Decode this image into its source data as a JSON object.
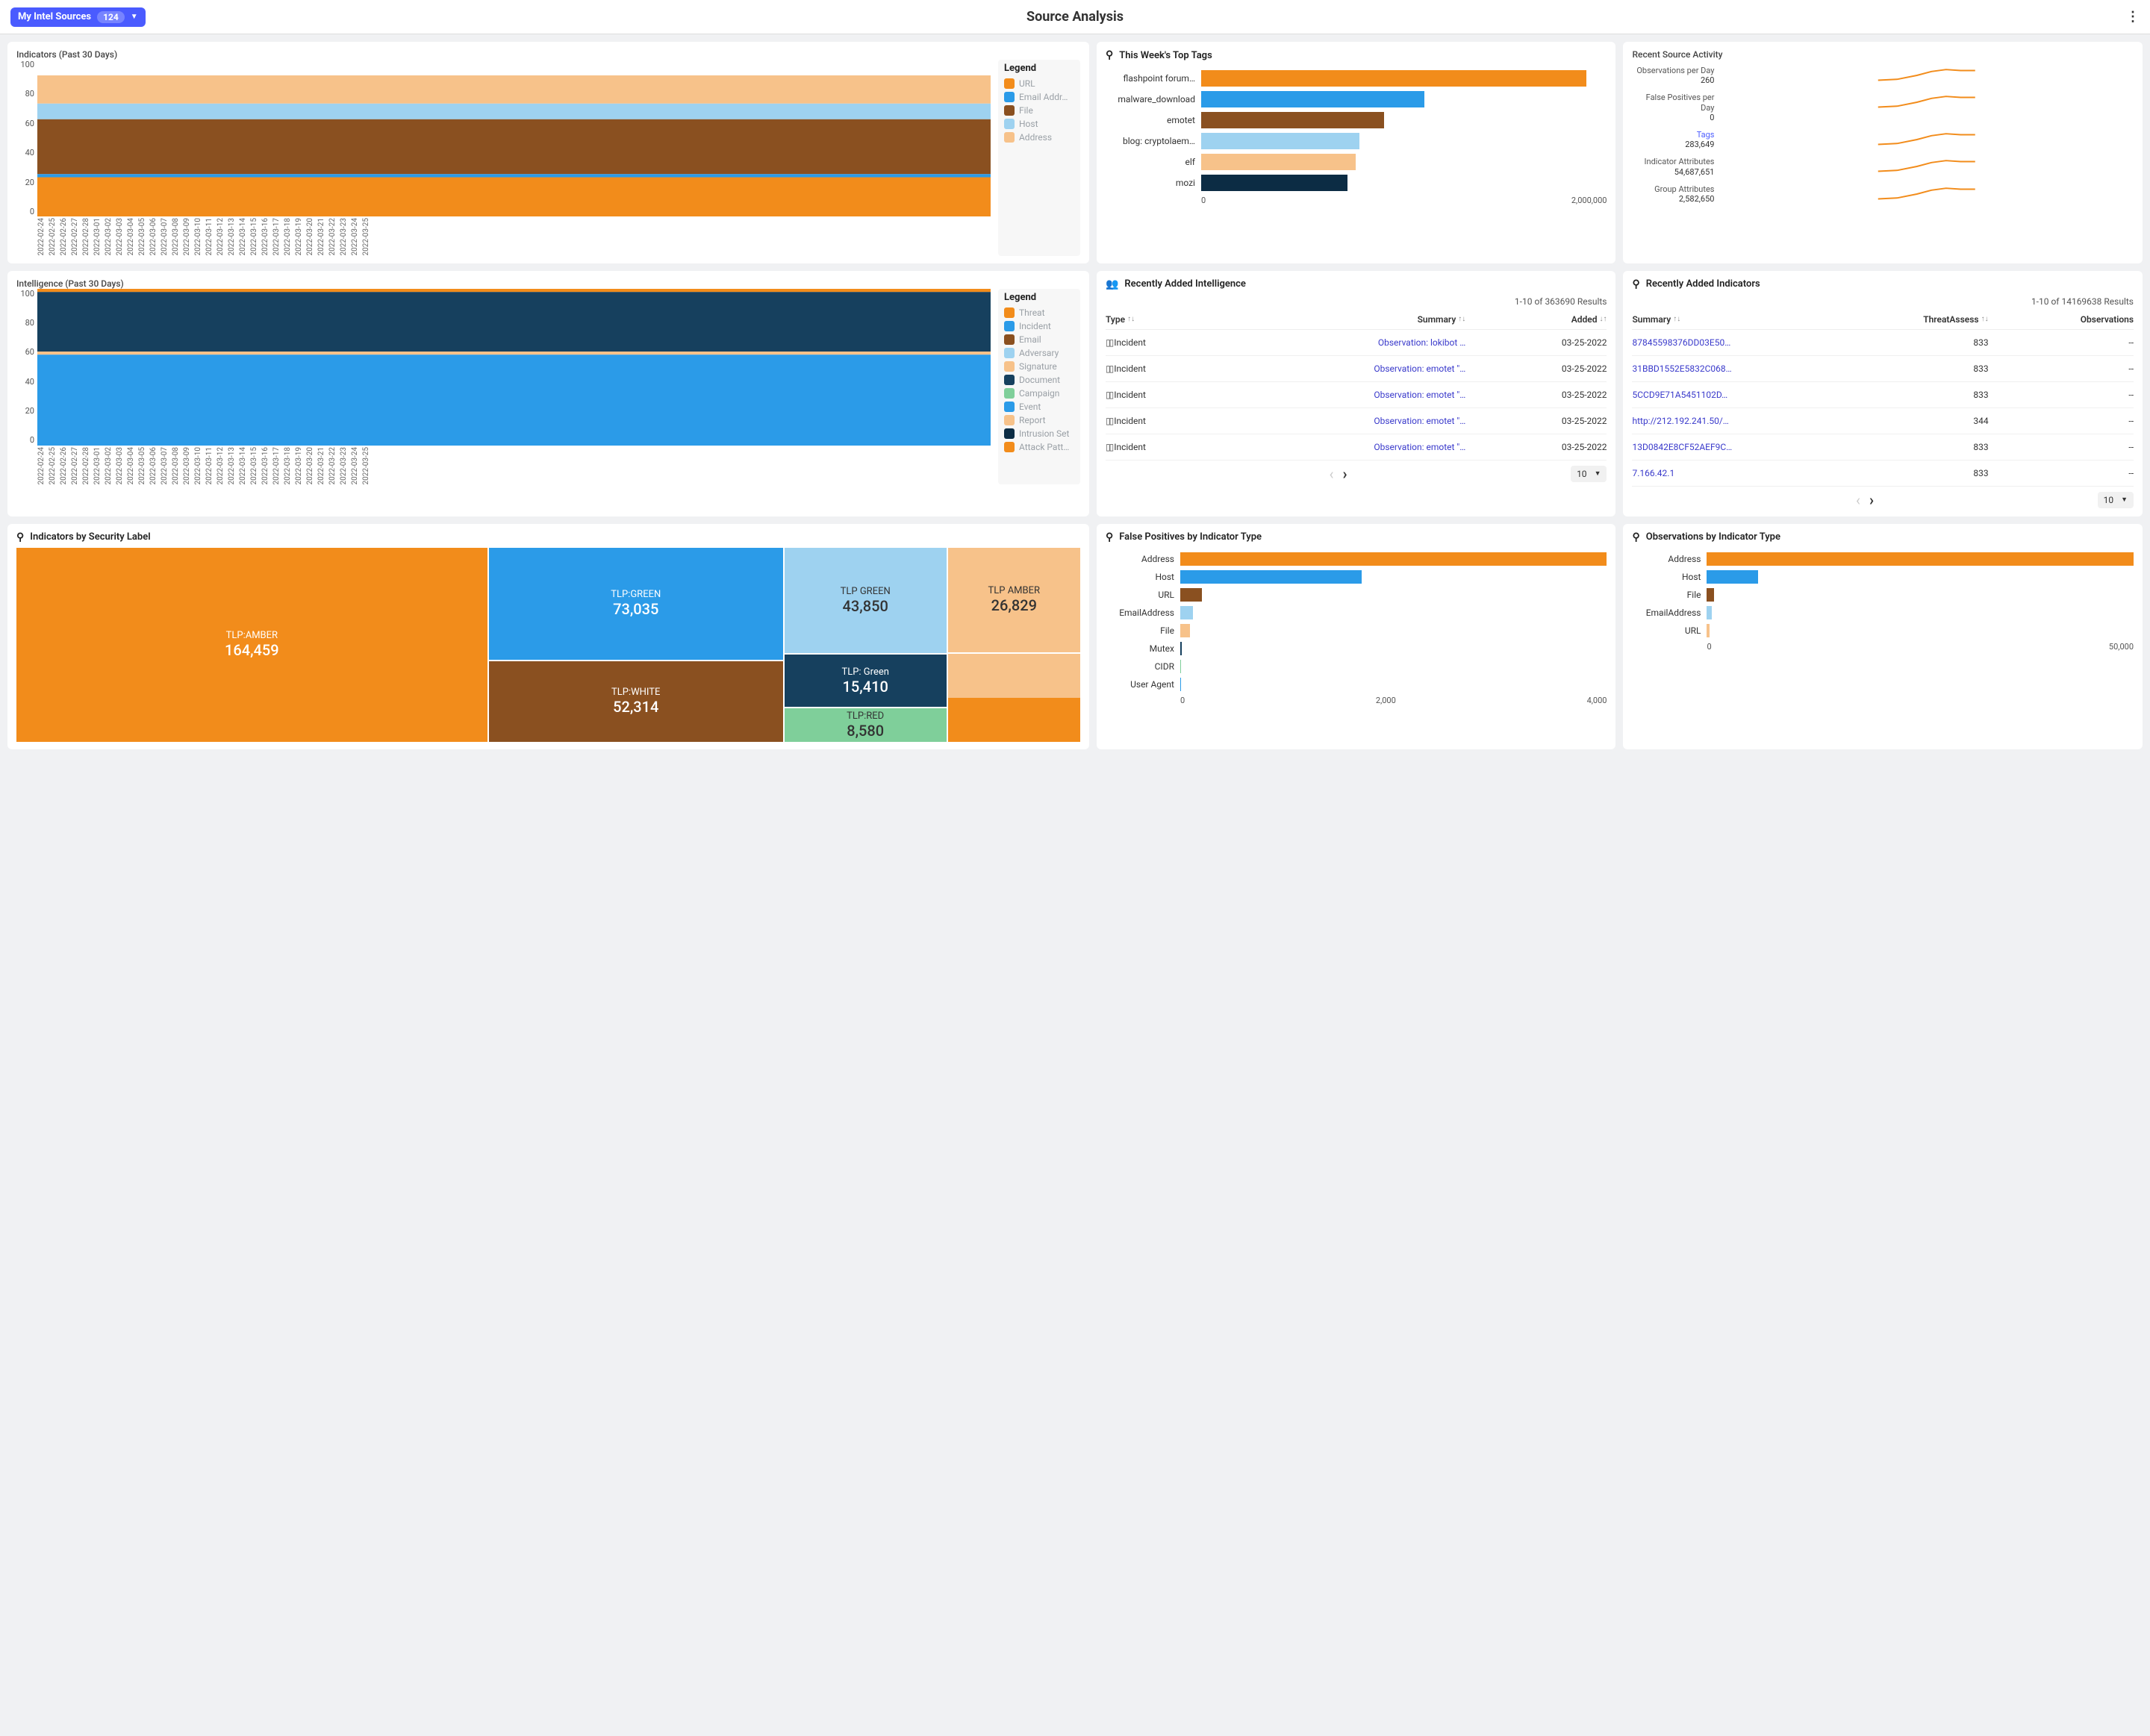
{
  "header": {
    "pill_label": "My Intel Sources",
    "pill_count": "124",
    "title": "Source Analysis"
  },
  "colors": {
    "accent_orange": "#f28c1b",
    "accent_blue": "#2b9be8",
    "brown": "#8a5020",
    "lightblue": "#9ed2f0",
    "peach": "#f7c28a",
    "navy": "#16405e",
    "darknavy": "#0c2c44",
    "green": "#7fcf9a",
    "text_muted": "#9aa0a6",
    "link_purple": "#3a3acb"
  },
  "indicators_chart": {
    "title": "Indicators (Past 30 Days)",
    "ylim": [
      0,
      100
    ],
    "ytick_step": 20,
    "x_dates": [
      "2022-02-24",
      "2022-02-25",
      "2022-02-26",
      "2022-02-27",
      "2022-02-28",
      "2022-03-01",
      "2022-03-02",
      "2022-03-03",
      "2022-03-04",
      "2022-03-05",
      "2022-03-06",
      "2022-03-07",
      "2022-03-08",
      "2022-03-09",
      "2022-03-10",
      "2022-03-11",
      "2022-03-12",
      "2022-03-13",
      "2022-03-14",
      "2022-03-15",
      "2022-03-16",
      "2022-03-17",
      "2022-03-18",
      "2022-03-19",
      "2022-03-20",
      "2022-03-21",
      "2022-03-22",
      "2022-03-23",
      "2022-03-24",
      "2022-03-25"
    ],
    "legend_title": "Legend",
    "legend": [
      {
        "label": "URL",
        "color": "#f28c1b"
      },
      {
        "label": "Email Addr…",
        "color": "#2b9be8"
      },
      {
        "label": "File",
        "color": "#8a5020"
      },
      {
        "label": "Host",
        "color": "#9ed2f0"
      },
      {
        "label": "Address",
        "color": "#f7c28a"
      }
    ],
    "bands": [
      {
        "color": "#f7c28a",
        "from": 90,
        "to": 72
      },
      {
        "color": "#9ed2f0",
        "from": 72,
        "to": 62
      },
      {
        "color": "#8a5020",
        "from": 62,
        "to": 27
      },
      {
        "color": "#2b9be8",
        "from": 27,
        "to": 25
      },
      {
        "color": "#f28c1b",
        "from": 25,
        "to": 0
      }
    ]
  },
  "intelligence_chart": {
    "title": "Intelligence (Past 30 Days)",
    "ylim": [
      0,
      100
    ],
    "ytick_step": 20,
    "legend_title": "Legend",
    "legend": [
      {
        "label": "Threat",
        "color": "#f28c1b"
      },
      {
        "label": "Incident",
        "color": "#2b9be8"
      },
      {
        "label": "Email",
        "color": "#8a5020"
      },
      {
        "label": "Adversary",
        "color": "#9ed2f0"
      },
      {
        "label": "Signature",
        "color": "#f7c28a"
      },
      {
        "label": "Document",
        "color": "#16405e"
      },
      {
        "label": "Campaign",
        "color": "#7fcf9a"
      },
      {
        "label": "Event",
        "color": "#2b9be8"
      },
      {
        "label": "Report",
        "color": "#f7c28a"
      },
      {
        "label": "Intrusion Set",
        "color": "#0c2c44"
      },
      {
        "label": "Attack Patt…",
        "color": "#f28c1b"
      }
    ],
    "bands": [
      {
        "color": "#f28c1b",
        "from": 100,
        "to": 98
      },
      {
        "color": "#16405e",
        "from": 98,
        "to": 60
      },
      {
        "color": "#f7c28a",
        "from": 60,
        "to": 58
      },
      {
        "color": "#2b9be8",
        "from": 58,
        "to": 0
      }
    ]
  },
  "top_tags": {
    "title": "This Week's Top Tags",
    "xmax": 2000000,
    "xmax_label": "2,000,000",
    "xmin_label": "0",
    "bars": [
      {
        "label": "flashpoint forum…",
        "value": 1900000,
        "color": "#f28c1b"
      },
      {
        "label": "malware_download",
        "value": 1100000,
        "color": "#2b9be8"
      },
      {
        "label": "emotet",
        "value": 900000,
        "color": "#8a5020"
      },
      {
        "label": "blog: cryptolaem…",
        "value": 780000,
        "color": "#9ed2f0"
      },
      {
        "label": "elf",
        "value": 760000,
        "color": "#f7c28a"
      },
      {
        "label": "mozi",
        "value": 720000,
        "color": "#0c2c44"
      }
    ]
  },
  "recent_activity": {
    "title": "Recent Source Activity",
    "rows": [
      {
        "label": "Observations per Day",
        "value": "260",
        "link": false
      },
      {
        "label": "False Positives per Day",
        "value": "0",
        "link": false
      },
      {
        "label": "Tags",
        "value": "283,649",
        "link": true
      },
      {
        "label": "Indicator Attributes",
        "value": "54,687,651",
        "link": false
      },
      {
        "label": "Group Attributes",
        "value": "2,582,650",
        "link": false
      }
    ],
    "spark_color": "#f28c1b"
  },
  "recent_intel": {
    "title": "Recently Added Intelligence",
    "results": "1-10 of 363690 Results",
    "cols": {
      "type": "Type",
      "summary": "Summary",
      "added": "Added"
    },
    "rows": [
      {
        "type": "Incident",
        "summary": "Observation: lokibot …",
        "added": "03-25-2022"
      },
      {
        "type": "Incident",
        "summary": "Observation: emotet \"…",
        "added": "03-25-2022"
      },
      {
        "type": "Incident",
        "summary": "Observation: emotet \"…",
        "added": "03-25-2022"
      },
      {
        "type": "Incident",
        "summary": "Observation: emotet \"…",
        "added": "03-25-2022"
      },
      {
        "type": "Incident",
        "summary": "Observation: emotet \"…",
        "added": "03-25-2022"
      }
    ],
    "page_size": "10"
  },
  "recent_indicators": {
    "title": "Recently Added Indicators",
    "results": "1-10 of 14169638 Results",
    "cols": {
      "summary": "Summary",
      "threat": "ThreatAssess",
      "obs": "Observations"
    },
    "rows": [
      {
        "summary": "87845598376DD03E50…",
        "threat": "833",
        "obs": "--"
      },
      {
        "summary": "31BBD1552E5832C068…",
        "threat": "833",
        "obs": "--"
      },
      {
        "summary": "5CCD9E71A5451102D…",
        "threat": "833",
        "obs": "--"
      },
      {
        "summary": "http://212.192.241.50/…",
        "threat": "344",
        "obs": "--"
      },
      {
        "summary": "13D0842E8CF52AEF9C…",
        "threat": "833",
        "obs": "--"
      },
      {
        "summary": "7.166.42.1",
        "threat": "833",
        "obs": "--"
      }
    ],
    "page_size": "10"
  },
  "treemap": {
    "title": "Indicators by Security Label",
    "boxes": {
      "amber": {
        "label": "TLP:AMBER",
        "value": "164,459",
        "color": "#f28c1b"
      },
      "green": {
        "label": "TLP:GREEN",
        "value": "73,035",
        "color": "#2b9be8"
      },
      "white": {
        "label": "TLP:WHITE",
        "value": "52,314",
        "color": "#8a5020"
      },
      "green2": {
        "label": "TLP GREEN",
        "value": "43,850",
        "color": "#9ed2f0"
      },
      "green3": {
        "label": "TLP: Green",
        "value": "15,410",
        "color": "#16405e"
      },
      "red": {
        "label": "TLP:RED",
        "value": "8,580",
        "color": "#7fcf9a"
      },
      "amber2": {
        "label": "TLP AMBER",
        "value": "26,829",
        "color": "#f7c28a"
      }
    }
  },
  "false_pos": {
    "title": "False Positives by Indicator Type",
    "xmax": 4000,
    "ticks": [
      "0",
      "2,000",
      "4,000"
    ],
    "bars": [
      {
        "label": "Address",
        "value": 4000,
        "color": "#f28c1b"
      },
      {
        "label": "Host",
        "value": 1700,
        "color": "#2b9be8"
      },
      {
        "label": "URL",
        "value": 200,
        "color": "#8a5020"
      },
      {
        "label": "EmailAddress",
        "value": 120,
        "color": "#9ed2f0"
      },
      {
        "label": "File",
        "value": 90,
        "color": "#f7c28a"
      },
      {
        "label": "Mutex",
        "value": 15,
        "color": "#16405e"
      },
      {
        "label": "CIDR",
        "value": 10,
        "color": "#7fcf9a"
      },
      {
        "label": "User Agent",
        "value": 8,
        "color": "#2b9be8"
      }
    ]
  },
  "observations": {
    "title": "Observations by Indicator Type",
    "xmax": 50000,
    "ticks": [
      "0",
      "50,000"
    ],
    "bars": [
      {
        "label": "Address",
        "value": 50000,
        "color": "#f28c1b"
      },
      {
        "label": "Host",
        "value": 6000,
        "color": "#2b9be8"
      },
      {
        "label": "File",
        "value": 800,
        "color": "#8a5020"
      },
      {
        "label": "EmailAddress",
        "value": 600,
        "color": "#9ed2f0"
      },
      {
        "label": "URL",
        "value": 300,
        "color": "#f7c28a"
      }
    ]
  }
}
